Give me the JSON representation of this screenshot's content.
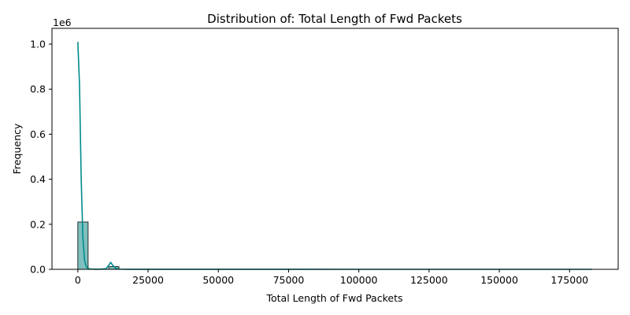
{
  "chart_data": {
    "type": "bar",
    "title": "Distribution of: Total Length of Fwd Packets",
    "xlabel": "Total Length of Fwd Packets",
    "ylabel": "Frequency",
    "y_offset_label": "1e6",
    "xlim": [
      -9200,
      192300
    ],
    "ylim": [
      0,
      1070000
    ],
    "x_ticks": [
      0,
      25000,
      50000,
      75000,
      100000,
      125000,
      150000,
      175000
    ],
    "x_tick_labels": [
      "0",
      "25000",
      "50000",
      "75000",
      "100000",
      "125000",
      "150000",
      "175000"
    ],
    "y_ticks": [
      0,
      200000,
      400000,
      600000,
      800000,
      1000000
    ],
    "y_tick_labels": [
      "0.0",
      "0.2",
      "0.4",
      "0.6",
      "0.8",
      "1.0"
    ],
    "bin_width": 3660,
    "bins": [
      {
        "x0": 0,
        "x1": 3660,
        "count": 210000
      },
      {
        "x0": 3660,
        "x1": 7320,
        "count": 1200
      },
      {
        "x0": 7320,
        "x1": 10980,
        "count": 600
      },
      {
        "x0": 10980,
        "x1": 14640,
        "count": 12000
      },
      {
        "x0": 14640,
        "x1": 18300,
        "count": 300
      }
    ],
    "kde": {
      "name": "KDE",
      "x": [
        0,
        600,
        1200,
        1800,
        2400,
        3000,
        3600,
        4500,
        6000,
        8000,
        10000,
        11000,
        11700,
        12400,
        13500,
        15000,
        18000,
        25000,
        50000,
        100000,
        150000,
        183000
      ],
      "y": [
        1010000,
        820000,
        400000,
        140000,
        40000,
        12000,
        4000,
        1500,
        800,
        600,
        3000,
        18000,
        31000,
        18000,
        4000,
        900,
        400,
        200,
        100,
        50,
        30,
        20
      ]
    },
    "colors": {
      "bar_fill": "#7fbfbf",
      "bar_edge": "#1a1a1a",
      "kde_line": "#008b8b"
    },
    "grid": false
  }
}
